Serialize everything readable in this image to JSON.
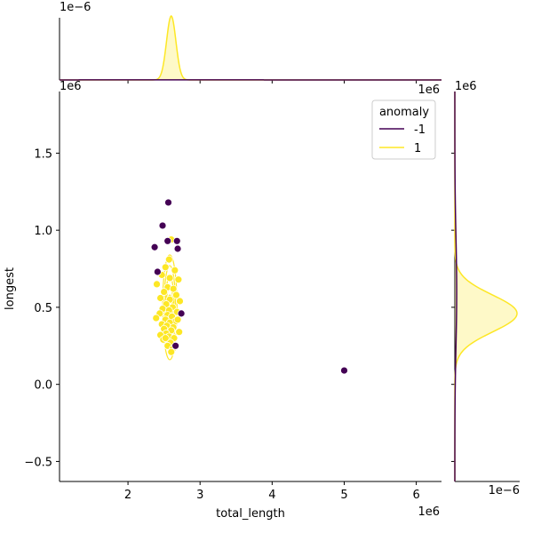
{
  "chart_data": {
    "type": "scatter",
    "xlabel": "total_length",
    "ylabel": "longest",
    "x_offset_label": "1e6",
    "y_offset_label": "1e6",
    "top_marginal_offset_label": "1e−6",
    "right_marginal_offset_label": "1e−6",
    "xlim": [
      1.05,
      6.35
    ],
    "ylim": [
      -0.63,
      1.9
    ],
    "xticks": [
      "2",
      "3",
      "4",
      "5",
      "6"
    ],
    "yticks": [
      "−0.5",
      "0.0",
      "0.5",
      "1.0",
      "1.5"
    ],
    "xtick_values": [
      2,
      3,
      4,
      5,
      6
    ],
    "ytick_values": [
      -0.5,
      0.0,
      0.5,
      1.0,
      1.5
    ],
    "legend": {
      "title": "anomaly",
      "placement": "top-right",
      "entries": [
        {
          "label": "-1",
          "color": "#440154"
        },
        {
          "label": "1",
          "color": "#fde725"
        }
      ]
    },
    "series": [
      {
        "name": "-1",
        "color": "#440154",
        "points": [
          [
            2.56,
            1.18
          ],
          [
            2.48,
            1.03
          ],
          [
            2.37,
            0.89
          ],
          [
            2.55,
            0.93
          ],
          [
            2.68,
            0.93
          ],
          [
            2.69,
            0.88
          ],
          [
            2.41,
            0.73
          ],
          [
            2.74,
            0.46
          ],
          [
            2.66,
            0.25
          ],
          [
            5.0,
            0.09
          ]
        ]
      },
      {
        "name": "1",
        "color": "#fde725",
        "points": [
          [
            2.6,
            0.94
          ],
          [
            2.57,
            0.81
          ],
          [
            2.52,
            0.76
          ],
          [
            2.65,
            0.74
          ],
          [
            2.47,
            0.71
          ],
          [
            2.58,
            0.69
          ],
          [
            2.7,
            0.68
          ],
          [
            2.4,
            0.65
          ],
          [
            2.55,
            0.63
          ],
          [
            2.63,
            0.62
          ],
          [
            2.5,
            0.6
          ],
          [
            2.67,
            0.58
          ],
          [
            2.45,
            0.56
          ],
          [
            2.58,
            0.55
          ],
          [
            2.72,
            0.54
          ],
          [
            2.53,
            0.52
          ],
          [
            2.62,
            0.5
          ],
          [
            2.48,
            0.49
          ],
          [
            2.57,
            0.48
          ],
          [
            2.68,
            0.47
          ],
          [
            2.44,
            0.46
          ],
          [
            2.55,
            0.45
          ],
          [
            2.61,
            0.44
          ],
          [
            2.39,
            0.43
          ],
          [
            2.52,
            0.42
          ],
          [
            2.66,
            0.41
          ],
          [
            2.58,
            0.4
          ],
          [
            2.47,
            0.39
          ],
          [
            2.54,
            0.38
          ],
          [
            2.63,
            0.37
          ],
          [
            2.5,
            0.36
          ],
          [
            2.6,
            0.35
          ],
          [
            2.71,
            0.34
          ],
          [
            2.53,
            0.33
          ],
          [
            2.45,
            0.32
          ],
          [
            2.57,
            0.31
          ],
          [
            2.64,
            0.3
          ],
          [
            2.49,
            0.29
          ],
          [
            2.59,
            0.27
          ],
          [
            2.55,
            0.25
          ],
          [
            2.62,
            0.23
          ],
          [
            2.6,
            0.21
          ],
          [
            2.52,
            0.3
          ],
          [
            2.69,
            0.42
          ]
        ]
      }
    ],
    "marginal_x": [
      {
        "name": "-1",
        "color": "#440154",
        "peak_x": 2.6,
        "peak_density": 0.05
      },
      {
        "name": "1",
        "color": "#fde725",
        "peak_x": 2.6,
        "peak_density": 1.0
      }
    ],
    "marginal_y": [
      {
        "name": "-1",
        "color": "#440154",
        "peak_y": 0.6,
        "peak_density": 0.03
      },
      {
        "name": "1",
        "color": "#fde725",
        "peak_y": 0.46,
        "peak_density": 1.0
      }
    ]
  }
}
